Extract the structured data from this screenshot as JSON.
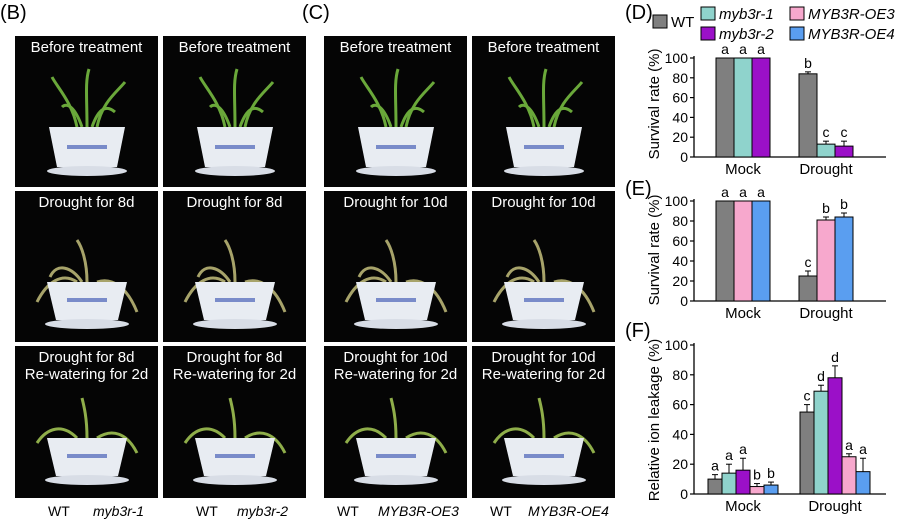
{
  "panels": {
    "B": "(B)",
    "C": "(C)",
    "D": "(D)",
    "E": "(E)",
    "F": "(F)"
  },
  "photos": {
    "B": {
      "row1": [
        "Before treatment",
        "Before treatment"
      ],
      "row2": [
        "Drought for 8d",
        "Drought for 8d"
      ],
      "row3": [
        [
          "Drought for 8d",
          "Re-watering for 2d"
        ],
        [
          "Drought for 8d",
          "Re-watering for 2d"
        ]
      ],
      "labels": [
        "WT",
        "myb3r-1",
        "WT",
        "myb3r-2"
      ]
    },
    "C": {
      "row1": [
        "Before treatment",
        "Before treatment"
      ],
      "row2": [
        "Drought for 10d",
        "Drought for 10d"
      ],
      "row3": [
        [
          "Drought for 10d",
          "Re-watering for 2d"
        ],
        [
          "Drought for 10d",
          "Re-watering for 2d"
        ]
      ],
      "labels": [
        "WT",
        "MYB3R-OE3",
        "WT",
        "MYB3R-OE4"
      ]
    }
  },
  "legend": [
    {
      "name": "WT",
      "color": "#7f7f7f"
    },
    {
      "name": "myb3r-1",
      "color": "#8fd3cc"
    },
    {
      "name": "MYB3R-OE3",
      "color": "#f7a8cd"
    },
    {
      "name": "myb3r-2",
      "color": "#9b10c8"
    },
    {
      "name": "MYB3R-OE4",
      "color": "#5a9ef0"
    }
  ],
  "chart_data": [
    {
      "panel": "D",
      "type": "bar",
      "ylabel": "Survival rate (%)",
      "ylim": [
        0,
        100
      ],
      "yticks": [
        "0",
        "20",
        "40",
        "60",
        "80",
        "100"
      ],
      "categories": [
        "Mock",
        "Drought"
      ],
      "series": [
        {
          "name": "WT",
          "color": "#7f7f7f",
          "values": [
            100,
            84
          ],
          "errors": [
            0,
            2
          ],
          "letters": [
            "a",
            "b"
          ]
        },
        {
          "name": "myb3r-1",
          "color": "#8fd3cc",
          "values": [
            100,
            13
          ],
          "errors": [
            0,
            3
          ],
          "letters": [
            "a",
            "c"
          ]
        },
        {
          "name": "myb3r-2",
          "color": "#9b10c8",
          "values": [
            100,
            11
          ],
          "errors": [
            0,
            5
          ],
          "letters": [
            "a",
            "c"
          ]
        }
      ]
    },
    {
      "panel": "E",
      "type": "bar",
      "ylabel": "Survival rate (%)",
      "ylim": [
        0,
        100
      ],
      "yticks": [
        "0",
        "20",
        "40",
        "60",
        "80",
        "100"
      ],
      "categories": [
        "Mock",
        "Drought"
      ],
      "series": [
        {
          "name": "WT",
          "color": "#7f7f7f",
          "values": [
            100,
            25
          ],
          "errors": [
            0,
            5
          ],
          "letters": [
            "a",
            "c"
          ]
        },
        {
          "name": "MYB3R-OE3",
          "color": "#f7a8cd",
          "values": [
            100,
            81
          ],
          "errors": [
            0,
            3
          ],
          "letters": [
            "a",
            "b"
          ]
        },
        {
          "name": "MYB3R-OE4",
          "color": "#5a9ef0",
          "values": [
            100,
            84
          ],
          "errors": [
            0,
            4
          ],
          "letters": [
            "a",
            "b"
          ]
        }
      ]
    },
    {
      "panel": "F",
      "type": "bar",
      "ylabel": "Relative ion leakage (%)",
      "ylim": [
        0,
        100
      ],
      "yticks": [
        "0",
        "20",
        "40",
        "60",
        "80",
        "100"
      ],
      "categories": [
        "Mock",
        "Drought"
      ],
      "series": [
        {
          "name": "WT",
          "color": "#7f7f7f",
          "values": [
            10,
            55
          ],
          "errors": [
            3,
            5
          ],
          "letters": [
            "a",
            "c"
          ]
        },
        {
          "name": "myb3r-1",
          "color": "#8fd3cc",
          "values": [
            14,
            69
          ],
          "errors": [
            6,
            4
          ],
          "letters": [
            "a",
            "d"
          ]
        },
        {
          "name": "myb3r-2",
          "color": "#9b10c8",
          "values": [
            16,
            78
          ],
          "errors": [
            8,
            8
          ],
          "letters": [
            "a",
            "d"
          ]
        },
        {
          "name": "MYB3R-OE3",
          "color": "#f7a8cd",
          "values": [
            5,
            25
          ],
          "errors": [
            2,
            2
          ],
          "letters": [
            "b",
            "a"
          ]
        },
        {
          "name": "MYB3R-OE4",
          "color": "#5a9ef0",
          "values": [
            6,
            15
          ],
          "errors": [
            2,
            9
          ],
          "letters": [
            "b",
            "a"
          ]
        }
      ]
    }
  ]
}
